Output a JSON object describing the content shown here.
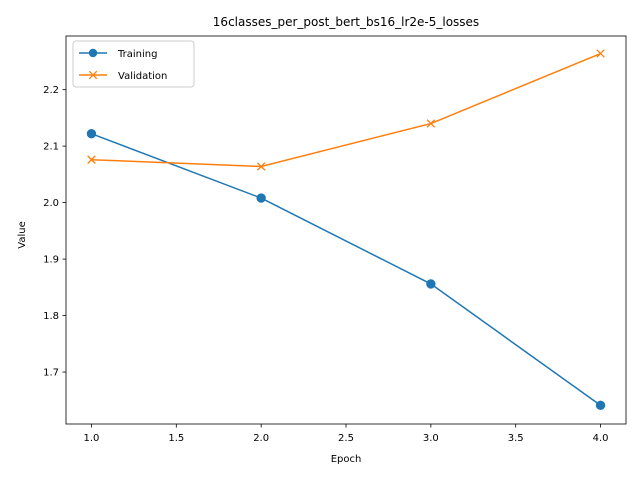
{
  "chart_data": {
    "type": "line",
    "title": "16classes_per_post_bert_bs16_lr2e-5_losses",
    "xlabel": "Epoch",
    "ylabel": "Value",
    "x": [
      1.0,
      2.0,
      3.0,
      4.0
    ],
    "xlim": [
      0.85,
      4.15
    ],
    "ylim": [
      1.608,
      2.295
    ],
    "xticks": [
      "1.0",
      "1.5",
      "2.0",
      "2.5",
      "3.0",
      "3.5",
      "4.0"
    ],
    "yticks": [
      "1.7",
      "1.8",
      "1.9",
      "2.0",
      "2.1",
      "2.2"
    ],
    "grid": false,
    "legend_position": "upper-left",
    "series": [
      {
        "name": "Training",
        "marker": "circle",
        "color": "#1f77b4",
        "values": [
          2.122,
          2.008,
          1.856,
          1.641
        ]
      },
      {
        "name": "Validation",
        "marker": "x",
        "color": "#ff7f0e",
        "values": [
          2.076,
          2.064,
          2.14,
          2.264
        ]
      }
    ]
  }
}
